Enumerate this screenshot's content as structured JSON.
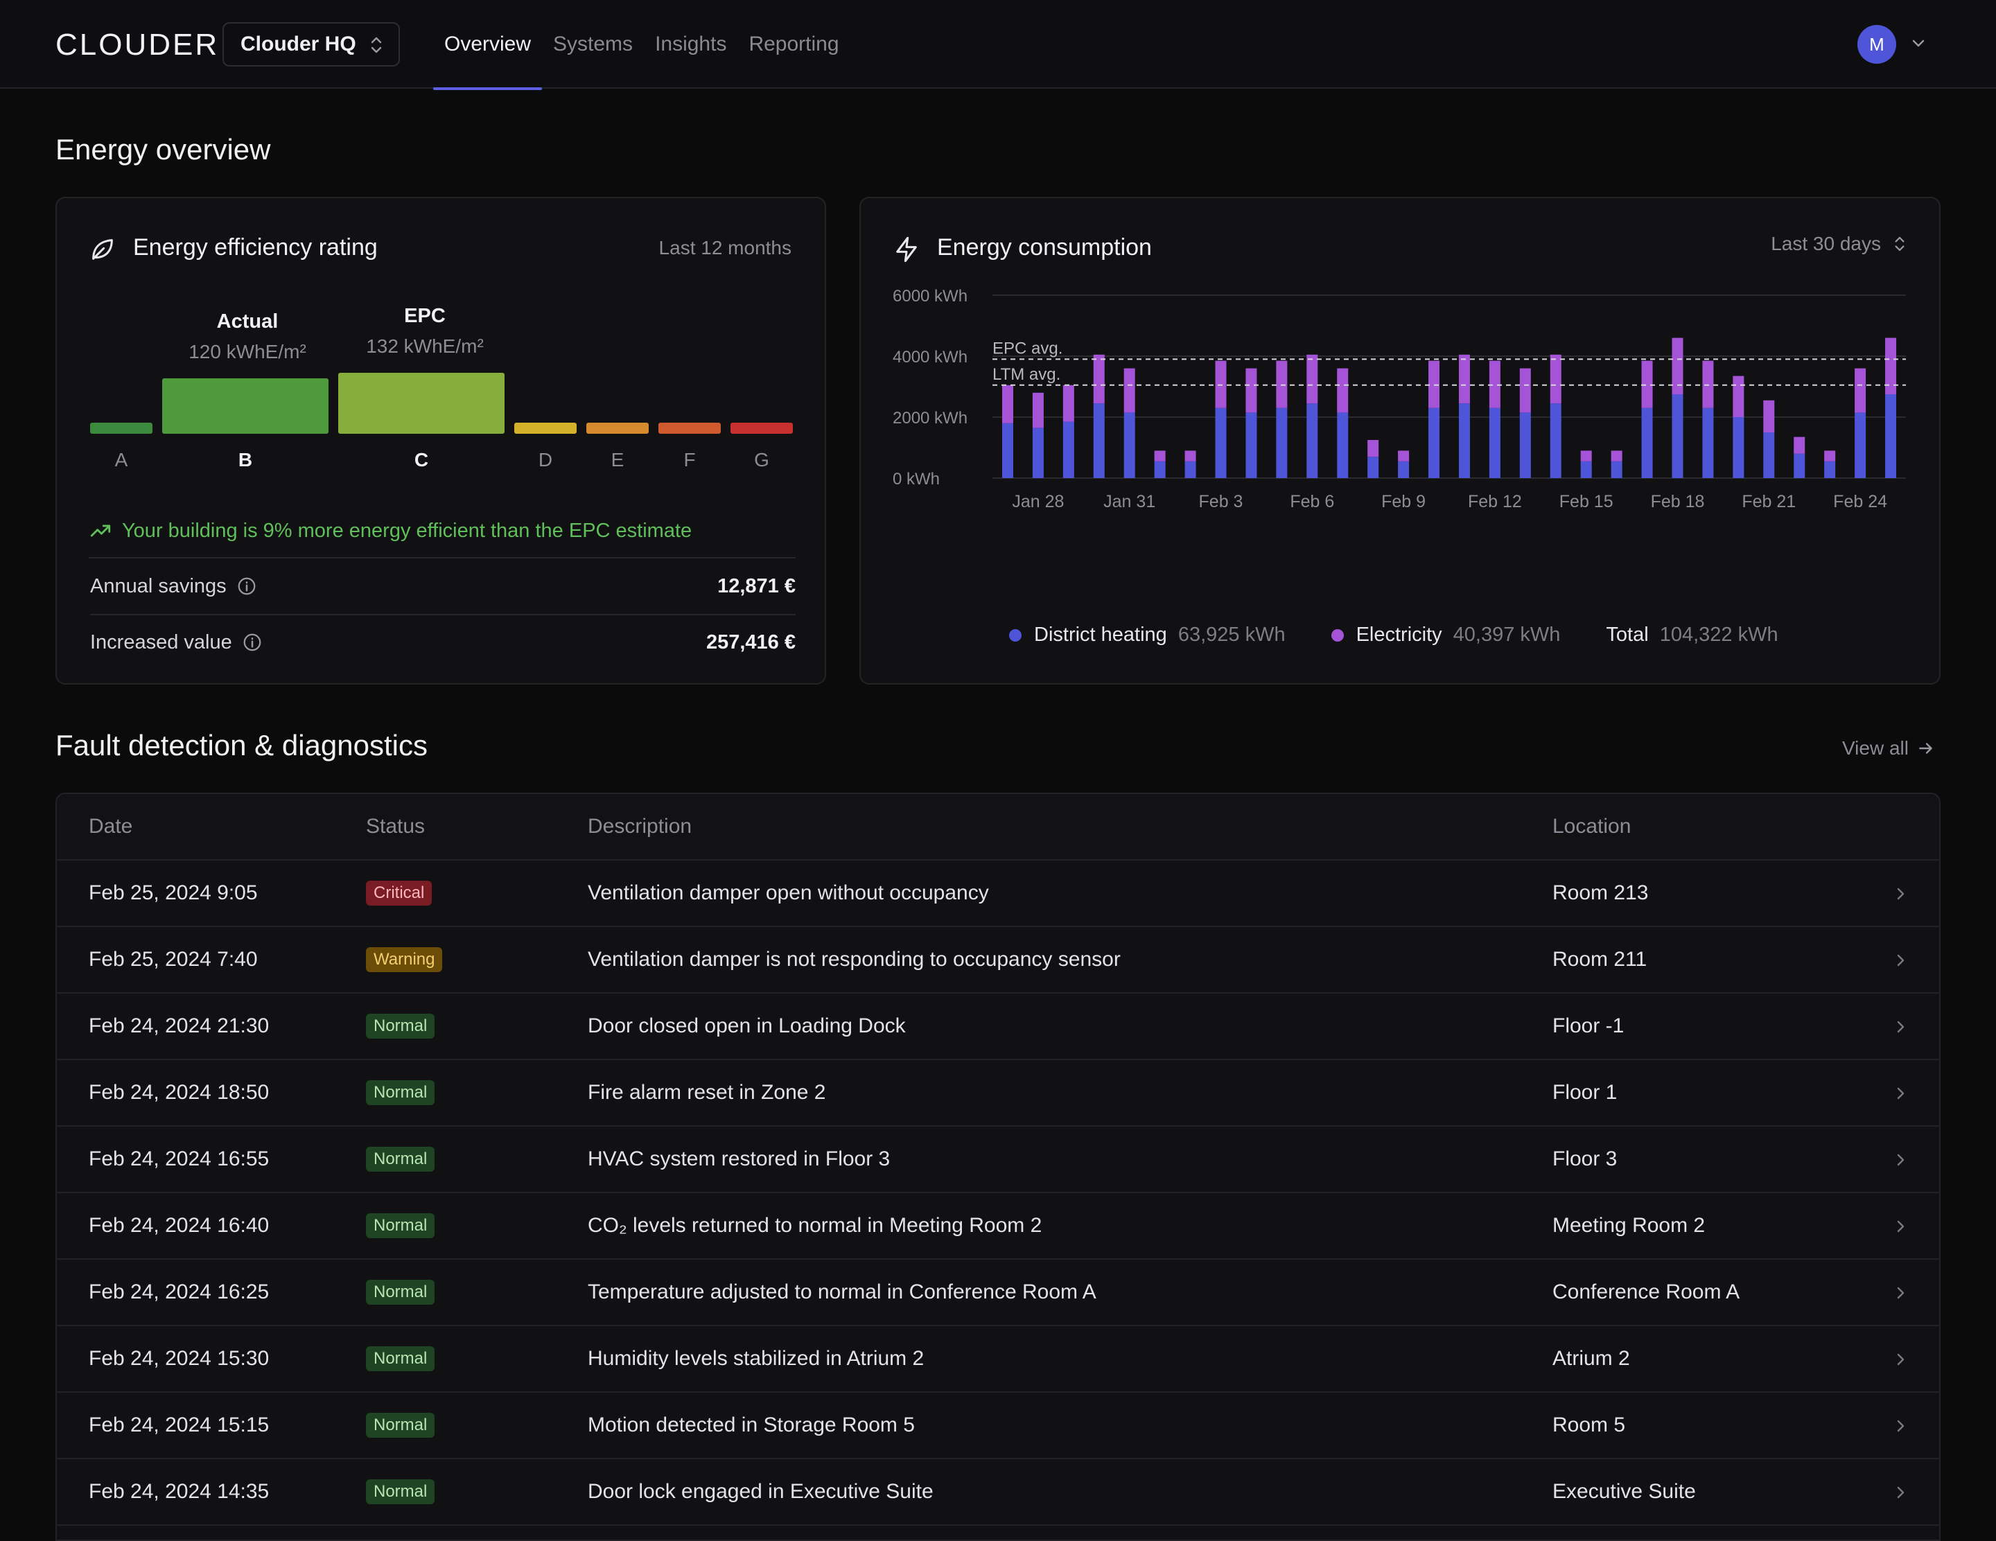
{
  "app": {
    "logo": "CLOUDER",
    "org": "Clouder HQ",
    "avatar_initial": "M"
  },
  "nav": [
    "Overview",
    "Systems",
    "Insights",
    "Reporting"
  ],
  "energy_overview": {
    "title": "Energy overview",
    "efficiency": {
      "title": "Energy efficiency rating",
      "period": "Last 12 months",
      "actual_label": "Actual",
      "actual_value": "120 kWhE/m²",
      "epc_label": "EPC",
      "epc_value": "132 kWhE/m²",
      "ratings": [
        {
          "letter": "A",
          "color": "#3b8a3e"
        },
        {
          "letter": "B",
          "color": "#4f9a3d"
        },
        {
          "letter": "C",
          "color": "#87ad3c"
        },
        {
          "letter": "D",
          "color": "#d4b12a"
        },
        {
          "letter": "E",
          "color": "#d68a2d"
        },
        {
          "letter": "F",
          "color": "#cf5a2e"
        },
        {
          "letter": "G",
          "color": "#c6302e"
        }
      ],
      "trend_text": "Your building is 9% more energy efficient than the EPC estimate",
      "annual_savings_label": "Annual savings",
      "annual_savings_value": "12,871 €",
      "increased_value_label": "Increased value",
      "increased_value_value": "257,416 €"
    },
    "consumption": {
      "title": "Energy consumption",
      "period": "Last 30 days",
      "legend": [
        {
          "name": "District heating",
          "value": "63,925 kWh",
          "color": "#4f55d9"
        },
        {
          "name": "Electricity",
          "value": "40,397 kWh",
          "color": "#a554d8"
        }
      ],
      "total_label": "Total",
      "total_value": "104,322 kWh"
    }
  },
  "chart_data": {
    "type": "bar",
    "stacked": true,
    "ylim": [
      0,
      6000
    ],
    "yticks": [
      "0 kWh",
      "2000 kWh",
      "4000 kWh",
      "6000 kWh"
    ],
    "ytick_values": [
      0,
      2000,
      4000,
      6000
    ],
    "xtick_labels": [
      "Jan 28",
      "Jan 31",
      "Feb 3",
      "Feb 6",
      "Feb 9",
      "Feb 12",
      "Feb 15",
      "Feb 18",
      "Feb 21",
      "Feb 24"
    ],
    "xtick_index": [
      1,
      4,
      7,
      10,
      13,
      16,
      19,
      22,
      25,
      28
    ],
    "reference_lines": [
      {
        "label": "EPC avg.",
        "value": 3900
      },
      {
        "label": "LTM avg.",
        "value": 3050
      }
    ],
    "series": [
      {
        "name": "District heating",
        "color": "#4f55d9",
        "values": [
          1800,
          1650,
          1850,
          2450,
          2150,
          550,
          550,
          2300,
          2150,
          2300,
          2450,
          2150,
          700,
          550,
          2300,
          2450,
          2300,
          2150,
          2450,
          550,
          550,
          2300,
          2750,
          2300,
          2000,
          1500,
          800,
          550,
          2150,
          2750
        ]
      },
      {
        "name": "Electricity",
        "color": "#a554d8",
        "values": [
          1250,
          1150,
          1200,
          1600,
          1450,
          350,
          350,
          1550,
          1450,
          1550,
          1600,
          1450,
          550,
          350,
          1550,
          1600,
          1550,
          1450,
          1600,
          350,
          350,
          1550,
          1850,
          1550,
          1350,
          1050,
          550,
          350,
          1450,
          1850
        ]
      }
    ]
  },
  "fdd": {
    "title": "Fault detection & diagnostics",
    "view_all": "View all",
    "columns": [
      "Date",
      "Status",
      "Description",
      "Location"
    ],
    "rows": [
      {
        "date": "Feb 25, 2024  9:05",
        "status": "Critical",
        "desc": "Ventilation damper open without occupancy",
        "loc": "Room 213"
      },
      {
        "date": "Feb 25, 2024  7:40",
        "status": "Warning",
        "desc": "Ventilation damper is not responding to occupancy sensor",
        "loc": "Room 211"
      },
      {
        "date": "Feb 24, 2024  21:30",
        "status": "Normal",
        "desc": "Door closed open in Loading Dock",
        "loc": "Floor -1"
      },
      {
        "date": "Feb 24, 2024  18:50",
        "status": "Normal",
        "desc": "Fire alarm reset in Zone 2",
        "loc": "Floor 1"
      },
      {
        "date": "Feb 24, 2024  16:55",
        "status": "Normal",
        "desc": "HVAC system restored in Floor 3",
        "loc": "Floor 3"
      },
      {
        "date": "Feb 24, 2024  16:40",
        "status": "Normal",
        "desc": "CO₂ levels returned to normal in Meeting Room 2",
        "loc": "Meeting Room 2"
      },
      {
        "date": "Feb 24, 2024  16:25",
        "status": "Normal",
        "desc": "Temperature adjusted to normal in Conference Room A",
        "loc": "Conference Room A"
      },
      {
        "date": "Feb 24, 2024  15:30",
        "status": "Normal",
        "desc": "Humidity levels stabilized in Atrium 2",
        "loc": "Atrium 2"
      },
      {
        "date": "Feb 24, 2024  15:15",
        "status": "Normal",
        "desc": "Motion detected in Storage Room 5",
        "loc": "Room 5"
      },
      {
        "date": "Feb 24, 2024  14:35",
        "status": "Normal",
        "desc": "Door lock engaged in Executive Suite",
        "loc": "Executive Suite"
      }
    ]
  }
}
